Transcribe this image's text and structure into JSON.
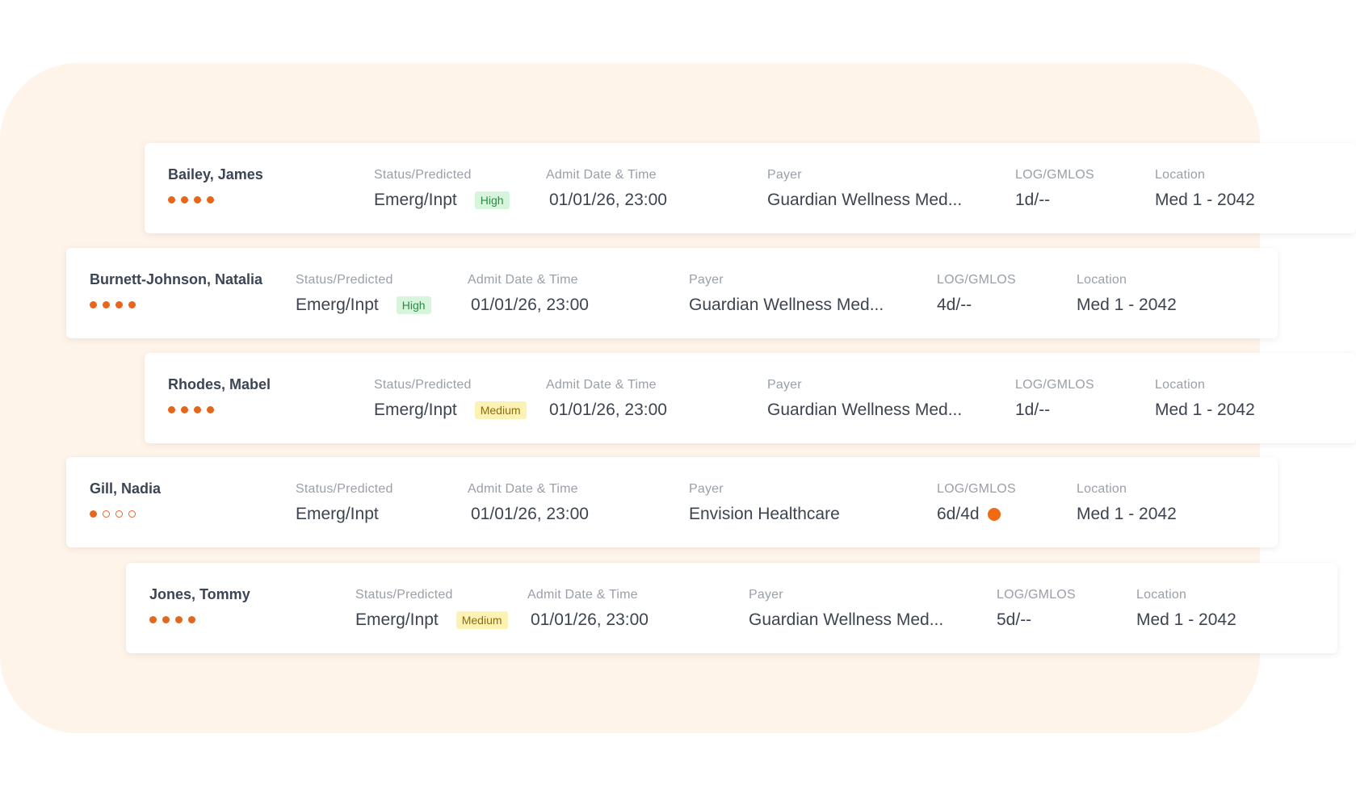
{
  "labels": {
    "status": "Status/Predicted",
    "admit": "Admit Date & Time",
    "payer": "Payer",
    "log": "LOG/GMLOS",
    "location": "Location"
  },
  "patients": [
    {
      "name": "Bailey, James",
      "dots_filled": 4,
      "dots_total": 4,
      "status": "Emerg/Inpt",
      "badge": "High",
      "admit": "01/01/26, 23:00",
      "payer": "Guardian Wellness Med...",
      "log": "1d/--",
      "location": "Med 1 - 2042"
    },
    {
      "name": "Burnett-Johnson, Natalia",
      "dots_filled": 4,
      "dots_total": 4,
      "status": "Emerg/Inpt",
      "badge": "High",
      "admit": "01/01/26, 23:00",
      "payer": "Guardian Wellness Med...",
      "log": "4d/--",
      "location": "Med 1 - 2042"
    },
    {
      "name": "Rhodes, Mabel",
      "dots_filled": 4,
      "dots_total": 4,
      "status": "Emerg/Inpt",
      "badge": "Medium",
      "admit": "01/01/26, 23:00",
      "payer": "Guardian Wellness Med...",
      "log": "1d/--",
      "location": "Med 1 - 2042"
    },
    {
      "name": "Gill, Nadia",
      "dots_filled": 1,
      "dots_total": 4,
      "status": "Emerg/Inpt",
      "badge": "",
      "admit": "01/01/26, 23:00",
      "payer": "Envision Healthcare",
      "log": "6d/4d",
      "log_alert": true,
      "location": "Med 1 - 2042"
    },
    {
      "name": "Jones, Tommy",
      "dots_filled": 4,
      "dots_total": 4,
      "status": "Emerg/Inpt",
      "badge": "Medium",
      "admit": "01/01/26, 23:00",
      "payer": "Guardian Wellness Med...",
      "log": "5d/--",
      "location": "Med 1 - 2042"
    }
  ],
  "colors": {
    "backdrop": "#fef4ea",
    "accent": "#e8651c",
    "high_badge_bg": "#d7f4dc",
    "medium_badge_bg": "#fcf2b4"
  }
}
